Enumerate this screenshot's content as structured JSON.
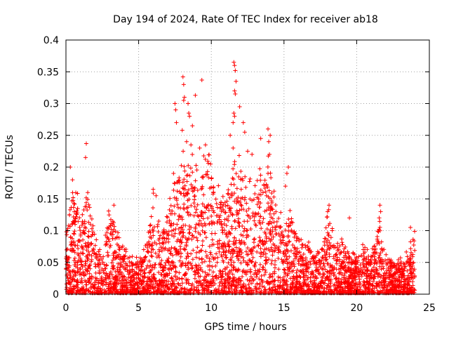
{
  "chart_data": {
    "type": "scatter",
    "title": "Day 194 of 2024, Rate Of TEC Index for receiver ab18",
    "xlabel": "GPS time / hours",
    "ylabel": "ROTI / TECUs",
    "xlim": [
      0,
      25
    ],
    "ylim": [
      0,
      0.4
    ],
    "xticks": [
      "0",
      "5",
      "10",
      "15",
      "20",
      "25"
    ],
    "yticks": [
      "0",
      "0.05",
      "0.1",
      "0.15",
      "0.2",
      "0.25",
      "0.3",
      "0.35",
      "0.4"
    ],
    "grid": true,
    "marker": "plus",
    "color": "#ff0000",
    "envelope": {
      "description": "approximate upper envelope of the dense point cloud (hour, ROTI)",
      "x": [
        0,
        0.5,
        1,
        1.5,
        2,
        2.5,
        3,
        3.5,
        4,
        4.5,
        5,
        5.5,
        6,
        6.5,
        7,
        7.5,
        8,
        8.5,
        9,
        9.5,
        10,
        10.5,
        11,
        11.5,
        12,
        12.5,
        13,
        13.5,
        14,
        14.5,
        15,
        15.5,
        16,
        16.5,
        17,
        17.5,
        18,
        18.5,
        19,
        19.5,
        20,
        20.5,
        21,
        21.5,
        22,
        22.5,
        23,
        23.5,
        24
      ],
      "y": [
        0.1,
        0.17,
        0.12,
        0.16,
        0.08,
        0.07,
        0.13,
        0.1,
        0.07,
        0.06,
        0.05,
        0.07,
        0.15,
        0.09,
        0.12,
        0.17,
        0.2,
        0.2,
        0.21,
        0.22,
        0.2,
        0.17,
        0.16,
        0.19,
        0.2,
        0.17,
        0.19,
        0.18,
        0.21,
        0.15,
        0.1,
        0.12,
        0.09,
        0.08,
        0.07,
        0.06,
        0.13,
        0.1,
        0.08,
        0.06,
        0.06,
        0.07,
        0.06,
        0.12,
        0.06,
        0.06,
        0.05,
        0.06,
        0.1
      ]
    },
    "outliers": [
      {
        "x": 0.1,
        "y": 0.1
      },
      {
        "x": 0.3,
        "y": 0.2
      },
      {
        "x": 0.45,
        "y": 0.18
      },
      {
        "x": 1.4,
        "y": 0.237
      },
      {
        "x": 1.35,
        "y": 0.215
      },
      {
        "x": 1.5,
        "y": 0.16
      },
      {
        "x": 3.3,
        "y": 0.14
      },
      {
        "x": 6.0,
        "y": 0.165
      },
      {
        "x": 6.2,
        "y": 0.155
      },
      {
        "x": 7.4,
        "y": 0.19
      },
      {
        "x": 7.5,
        "y": 0.3
      },
      {
        "x": 7.55,
        "y": 0.29
      },
      {
        "x": 7.6,
        "y": 0.27
      },
      {
        "x": 8.05,
        "y": 0.342
      },
      {
        "x": 8.1,
        "y": 0.33
      },
      {
        "x": 8.15,
        "y": 0.31
      },
      {
        "x": 8.1,
        "y": 0.305
      },
      {
        "x": 8.0,
        "y": 0.258
      },
      {
        "x": 8.4,
        "y": 0.3
      },
      {
        "x": 8.45,
        "y": 0.285
      },
      {
        "x": 8.5,
        "y": 0.28
      },
      {
        "x": 8.7,
        "y": 0.265
      },
      {
        "x": 8.9,
        "y": 0.313
      },
      {
        "x": 8.3,
        "y": 0.24
      },
      {
        "x": 8.6,
        "y": 0.235
      },
      {
        "x": 9.35,
        "y": 0.337
      },
      {
        "x": 9.2,
        "y": 0.23
      },
      {
        "x": 9.6,
        "y": 0.235
      },
      {
        "x": 11.55,
        "y": 0.365
      },
      {
        "x": 11.6,
        "y": 0.36
      },
      {
        "x": 11.65,
        "y": 0.352
      },
      {
        "x": 11.7,
        "y": 0.335
      },
      {
        "x": 11.6,
        "y": 0.32
      },
      {
        "x": 11.65,
        "y": 0.315
      },
      {
        "x": 11.55,
        "y": 0.285
      },
      {
        "x": 11.6,
        "y": 0.28
      },
      {
        "x": 11.5,
        "y": 0.27
      },
      {
        "x": 11.95,
        "y": 0.295
      },
      {
        "x": 12.2,
        "y": 0.27
      },
      {
        "x": 12.3,
        "y": 0.255
      },
      {
        "x": 11.3,
        "y": 0.25
      },
      {
        "x": 11.5,
        "y": 0.23
      },
      {
        "x": 12.8,
        "y": 0.22
      },
      {
        "x": 12.5,
        "y": 0.225
      },
      {
        "x": 13.4,
        "y": 0.245
      },
      {
        "x": 13.9,
        "y": 0.26
      },
      {
        "x": 13.95,
        "y": 0.24
      },
      {
        "x": 14.0,
        "y": 0.22
      },
      {
        "x": 14.05,
        "y": 0.25
      },
      {
        "x": 13.9,
        "y": 0.19
      },
      {
        "x": 13.8,
        "y": 0.155
      },
      {
        "x": 15.3,
        "y": 0.2
      },
      {
        "x": 15.2,
        "y": 0.19
      },
      {
        "x": 15.1,
        "y": 0.17
      },
      {
        "x": 18.1,
        "y": 0.14
      },
      {
        "x": 18.0,
        "y": 0.13
      },
      {
        "x": 19.5,
        "y": 0.12
      },
      {
        "x": 21.6,
        "y": 0.14
      },
      {
        "x": 21.65,
        "y": 0.13
      },
      {
        "x": 21.55,
        "y": 0.12
      },
      {
        "x": 23.7,
        "y": 0.105
      }
    ]
  }
}
